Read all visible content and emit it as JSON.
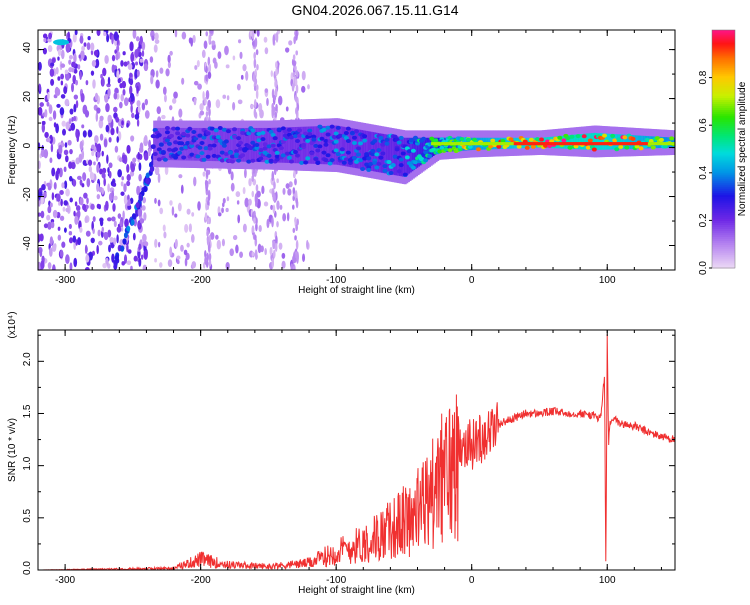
{
  "figure_title": "GN04.2026.067.15.11.G14",
  "chart_data": [
    {
      "type": "heatmap",
      "title": "GN04.2026.067.15.11.G14",
      "xlabel": "Height of straight line (km)",
      "ylabel": "Frequency (Hz)",
      "xlim": [
        -320,
        150
      ],
      "ylim": [
        -50,
        48
      ],
      "xticks": [
        -300,
        -200,
        -100,
        0,
        100
      ],
      "yticks": [
        -40,
        -20,
        0,
        20,
        40
      ],
      "colorbar": {
        "label": "Normalized spectral amplitude",
        "range": [
          0,
          1
        ],
        "ticks": [
          "0.0",
          "0.2",
          "0.4",
          "0.6",
          "0.8"
        ],
        "tick_values": [
          0.0,
          0.2,
          0.4,
          0.6,
          0.8
        ]
      },
      "ridge": {
        "description_points": [
          {
            "x": -235,
            "f_low": -5,
            "f_high": 8,
            "amp": 0.3
          },
          {
            "x": -150,
            "f_low": -6,
            "f_high": 8,
            "amp": 0.35
          },
          {
            "x": -100,
            "f_low": -7,
            "f_high": 9,
            "amp": 0.35
          },
          {
            "x": -50,
            "f_low": -12,
            "f_high": 4,
            "amp": 0.4
          },
          {
            "x": -25,
            "f_low": -2,
            "f_high": 4,
            "amp": 0.55
          },
          {
            "x": 0,
            "f_low": -1,
            "f_high": 4,
            "amp": 0.75
          },
          {
            "x": 50,
            "f_low": 0,
            "f_high": 4,
            "amp": 0.9
          },
          {
            "x": 90,
            "f_low": -1,
            "f_high": 6,
            "amp": 0.9
          },
          {
            "x": 150,
            "f_low": 0,
            "f_high": 4,
            "amp": 0.7
          }
        ],
        "diagonal_track": [
          [
            -265,
            -50
          ],
          [
            -240,
            -15
          ],
          [
            -232,
            0
          ]
        ]
      }
    },
    {
      "type": "line",
      "xlabel": "Height of straight line (km)",
      "ylabel": "SNR (10 * v/v)",
      "y_multiplier": "(x10⁴)",
      "xlim": [
        -320,
        150
      ],
      "ylim": [
        0,
        2.3
      ],
      "xticks": [
        -300,
        -200,
        -100,
        0,
        100
      ],
      "yticks": [
        "0.0",
        "0.5",
        "1.0",
        "1.5",
        "2.0"
      ],
      "ytick_values": [
        0.0,
        0.5,
        1.0,
        1.5,
        2.0
      ],
      "color": "#f03030",
      "series": [
        {
          "name": "SNR",
          "x": [
            -320,
            -220,
            -200,
            -180,
            -150,
            -120,
            -100,
            -80,
            -60,
            -40,
            -30,
            -20,
            -10,
            0,
            10,
            20,
            30,
            40,
            50,
            60,
            70,
            80,
            90,
            95,
            98,
            99,
            100,
            101,
            102,
            105,
            110,
            120,
            130,
            140,
            150
          ],
          "y": [
            0.0,
            0.02,
            0.12,
            0.06,
            0.04,
            0.08,
            0.2,
            0.3,
            0.45,
            0.65,
            0.85,
            1.05,
            1.25,
            1.2,
            1.3,
            1.4,
            1.45,
            1.5,
            1.5,
            1.52,
            1.5,
            1.5,
            1.48,
            1.45,
            1.85,
            0.0,
            2.25,
            1.2,
            1.4,
            1.45,
            1.4,
            1.38,
            1.32,
            1.28,
            1.25
          ]
        }
      ]
    }
  ]
}
